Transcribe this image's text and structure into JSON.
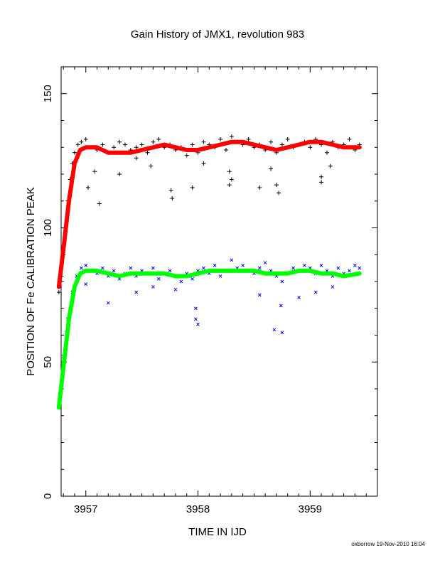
{
  "chart_data": {
    "type": "scatter",
    "title": "Gain History of JMX1, revolution 983",
    "xlabel": "TIME IN IJD",
    "ylabel": "POSITION OF Fe CALIBRATION PEAK",
    "xlim": [
      3956.78,
      3959.6
    ],
    "ylim": [
      0,
      160
    ],
    "xticks": [
      "3957",
      "3958",
      "3959"
    ],
    "xtick_values": [
      3957,
      3958,
      3959
    ],
    "yticks": [
      "0",
      "50",
      "100",
      "150"
    ],
    "ytick_values": [
      0,
      50,
      100,
      150
    ],
    "grid": false,
    "footer": "oxborrow 19-Nov-2010 16:04",
    "series": [
      {
        "role": "upper-peak-raw",
        "marker": "+",
        "color": "#000000",
        "x": [
          3956.76,
          3956.78,
          3956.8,
          3956.82,
          3956.84,
          3956.86,
          3956.88,
          3956.9,
          3956.93,
          3956.96,
          3957.0,
          3957.05,
          3957.1,
          3957.15,
          3957.2,
          3957.25,
          3957.3,
          3957.35,
          3957.4,
          3957.45,
          3957.5,
          3957.55,
          3957.6,
          3957.65,
          3957.7,
          3957.75,
          3957.8,
          3957.85,
          3957.9,
          3957.95,
          3958.0,
          3958.05,
          3958.1,
          3958.15,
          3958.2,
          3958.25,
          3958.3,
          3958.35,
          3958.4,
          3958.45,
          3958.5,
          3958.55,
          3958.6,
          3958.65,
          3958.7,
          3958.75,
          3958.8,
          3958.85,
          3958.9,
          3958.95,
          3959.0,
          3959.05,
          3959.1,
          3959.15,
          3959.2,
          3959.25,
          3959.3,
          3959.35,
          3959.4,
          3959.44,
          3957.02,
          3957.08,
          3957.12,
          3957.3,
          3957.58,
          3957.76,
          3957.77,
          3957.95,
          3958.28,
          3958.28,
          3958.3,
          3958.55,
          3958.7,
          3958.72,
          3959.1,
          3959.1,
          3959.18,
          3958.65,
          3958.05,
          3957.45
        ],
        "y": [
          76,
          82,
          90,
          100,
          110,
          118,
          124,
          128,
          131,
          132,
          133,
          130,
          129,
          131,
          128,
          130,
          132,
          131,
          129,
          130,
          131,
          128,
          132,
          133,
          130,
          131,
          129,
          130,
          127,
          131,
          128,
          132,
          131,
          130,
          133,
          129,
          134,
          132,
          131,
          133,
          130,
          131,
          129,
          132,
          128,
          131,
          133,
          130,
          131,
          132,
          130,
          133,
          131,
          128,
          132,
          130,
          131,
          133,
          129,
          131,
          115,
          121,
          109,
          120,
          123,
          114,
          111,
          115,
          121,
          116,
          118,
          115,
          116,
          113,
          119,
          117,
          123,
          122,
          124,
          126
        ]
      },
      {
        "role": "upper-peak-fit",
        "marker": "line",
        "color": "#ff0000",
        "x": [
          3956.76,
          3956.8,
          3956.85,
          3956.9,
          3956.95,
          3957.0,
          3957.1,
          3957.2,
          3957.3,
          3957.4,
          3957.5,
          3957.6,
          3957.7,
          3957.8,
          3957.9,
          3958.0,
          3958.1,
          3958.2,
          3958.3,
          3958.4,
          3958.5,
          3958.6,
          3958.7,
          3958.8,
          3958.9,
          3959.0,
          3959.1,
          3959.2,
          3959.3,
          3959.44
        ],
        "y": [
          78,
          92,
          110,
          124,
          129,
          130,
          130,
          128,
          128,
          128,
          129,
          130,
          131,
          130,
          129,
          129,
          130,
          131,
          132,
          132,
          131,
          130,
          129,
          130,
          131,
          132,
          132,
          131,
          130,
          130
        ]
      },
      {
        "role": "lower-peak-raw",
        "marker": "x",
        "color": "#0000ff",
        "x": [
          3956.8,
          3956.84,
          3956.88,
          3956.92,
          3956.96,
          3957.0,
          3957.05,
          3957.1,
          3957.15,
          3957.2,
          3957.25,
          3957.3,
          3957.35,
          3957.4,
          3957.45,
          3957.5,
          3957.55,
          3957.6,
          3957.65,
          3957.7,
          3957.75,
          3957.8,
          3957.85,
          3957.9,
          3957.95,
          3958.0,
          3958.05,
          3958.1,
          3958.15,
          3958.2,
          3958.25,
          3958.3,
          3958.35,
          3958.4,
          3958.45,
          3958.5,
          3958.55,
          3958.6,
          3958.65,
          3958.7,
          3958.75,
          3958.8,
          3958.85,
          3958.9,
          3958.95,
          3959.0,
          3959.05,
          3959.1,
          3959.15,
          3959.2,
          3959.25,
          3959.3,
          3959.35,
          3959.4,
          3959.44,
          3957.0,
          3957.2,
          3957.45,
          3957.6,
          3957.8,
          3957.98,
          3957.98,
          3958.0,
          3958.55,
          3958.68,
          3958.74,
          3958.75,
          3958.9,
          3959.05,
          3959.2
        ],
        "y": [
          52,
          66,
          76,
          82,
          85,
          86,
          84,
          83,
          85,
          82,
          84,
          81,
          83,
          85,
          82,
          84,
          83,
          85,
          81,
          83,
          84,
          82,
          80,
          83,
          81,
          84,
          85,
          83,
          86,
          82,
          84,
          88,
          85,
          86,
          84,
          83,
          85,
          87,
          84,
          82,
          80,
          83,
          85,
          84,
          86,
          85,
          83,
          86,
          84,
          82,
          85,
          83,
          84,
          86,
          85,
          79,
          72,
          76,
          78,
          77,
          70,
          66,
          64,
          75,
          62,
          71,
          61,
          74,
          76,
          78
        ]
      },
      {
        "role": "lower-peak-fit",
        "marker": "line",
        "color": "#00ff00",
        "x": [
          3956.76,
          3956.8,
          3956.85,
          3956.9,
          3956.95,
          3957.0,
          3957.1,
          3957.2,
          3957.3,
          3957.4,
          3957.5,
          3957.6,
          3957.7,
          3957.8,
          3957.9,
          3958.0,
          3958.1,
          3958.2,
          3958.3,
          3958.4,
          3958.5,
          3958.6,
          3958.7,
          3958.8,
          3958.9,
          3959.0,
          3959.1,
          3959.2,
          3959.3,
          3959.44
        ],
        "y": [
          33,
          48,
          66,
          78,
          83,
          84,
          84,
          83,
          82,
          83,
          83,
          83,
          83,
          82,
          82,
          83,
          84,
          84,
          84,
          84,
          84,
          83,
          83,
          83,
          84,
          84,
          83,
          83,
          82,
          83
        ]
      }
    ]
  }
}
